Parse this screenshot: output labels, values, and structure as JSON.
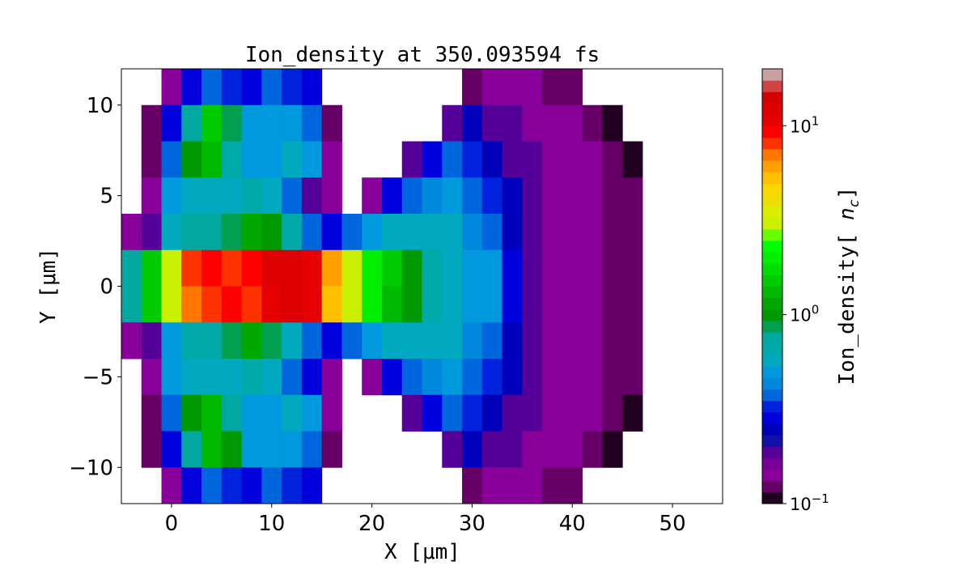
{
  "chart_data": {
    "type": "heatmap",
    "title": "Ion_density at 350.093594 fs",
    "xlabel": "X [μm]",
    "ylabel": "Y [μm]",
    "colorbar_label": "Ion_density[n_c]",
    "colorbar_scale": "log",
    "colorbar_range": [
      0.1,
      20
    ],
    "colorbar_ticks": [
      {
        "value": 10,
        "label": "10",
        "exp": "1"
      },
      {
        "value": 1,
        "label": "10",
        "exp": "0"
      },
      {
        "value": 0.1,
        "label": "10",
        "exp": "−1"
      }
    ],
    "xlim": [
      -5,
      55
    ],
    "ylim": [
      -12,
      12
    ],
    "xticks": [
      {
        "value": 0,
        "label": "0"
      },
      {
        "value": 10,
        "label": "10"
      },
      {
        "value": 20,
        "label": "20"
      },
      {
        "value": 30,
        "label": "30"
      },
      {
        "value": 40,
        "label": "40"
      },
      {
        "value": 50,
        "label": "50"
      }
    ],
    "yticks": [
      {
        "value": 10,
        "label": "10"
      },
      {
        "value": 5,
        "label": "5"
      },
      {
        "value": 0,
        "label": "0"
      },
      {
        "value": -5,
        "label": "−5"
      },
      {
        "value": -10,
        "label": "−10"
      }
    ],
    "grid": false,
    "colormap": [
      "#220022",
      "#660066",
      "#880099",
      "#770099",
      "#550099",
      "#1111aa",
      "#0000bb",
      "#0000dd",
      "#0022dd",
      "#0066dd",
      "#0088dd",
      "#0099dd",
      "#00a8c0",
      "#00aaaa",
      "#00a8a0",
      "#00a050",
      "#009900",
      "#00a800",
      "#00b800",
      "#00cc00",
      "#00dd00",
      "#00f000",
      "#00ff00",
      "#66ff00",
      "#c8f000",
      "#dded00",
      "#eedd00",
      "#f8d800",
      "#ffc000",
      "#ffa000",
      "#ff7700",
      "#ff3300",
      "#ff0000",
      "#e60000",
      "#dd0000",
      "#d40000",
      "#cc4444",
      "#c8a0a0"
    ],
    "x_centers": [
      -4,
      -2,
      0,
      2,
      4,
      6,
      8,
      10,
      12,
      14,
      16,
      18,
      20,
      22,
      24,
      26,
      28,
      30,
      32,
      34,
      36,
      38,
      40,
      42,
      44,
      46,
      48,
      50,
      52,
      54
    ],
    "y_centers": [
      11,
      9,
      7,
      5,
      3,
      1,
      -1,
      -3,
      -5,
      -7,
      -9,
      -11
    ],
    "values": [
      [
        0,
        0,
        0.15,
        0.3,
        0.4,
        0.35,
        0.3,
        0.4,
        0.35,
        0.3,
        0,
        0,
        0,
        0,
        0,
        0,
        0,
        0.12,
        0.15,
        0.15,
        0.15,
        0.12,
        0.12,
        0,
        0,
        0,
        0,
        0,
        0,
        0
      ],
      [
        0,
        0.12,
        0.3,
        0.8,
        1.5,
        0.9,
        0.5,
        0.5,
        0.5,
        0.4,
        0.12,
        0,
        0,
        0,
        0,
        0,
        0.2,
        0.25,
        0.2,
        0.18,
        0.15,
        0.15,
        0.15,
        0.12,
        0.1,
        0,
        0,
        0,
        0,
        0
      ],
      [
        0,
        0.12,
        0.4,
        1.0,
        1.3,
        0.7,
        0.5,
        0.5,
        0.6,
        0.5,
        0.15,
        0,
        0,
        0,
        0.2,
        0.3,
        0.4,
        0.35,
        0.25,
        0.2,
        0.18,
        0.15,
        0.15,
        0.15,
        0.12,
        0.1,
        0,
        0,
        0,
        0
      ],
      [
        0,
        0.15,
        0.5,
        0.6,
        0.6,
        0.6,
        0.7,
        0.6,
        0.4,
        0.2,
        0.15,
        0,
        0.15,
        0.3,
        0.4,
        0.45,
        0.5,
        0.4,
        0.35,
        0.25,
        0.2,
        0.15,
        0.15,
        0.15,
        0.12,
        0.12,
        0,
        0,
        0,
        0
      ],
      [
        0.15,
        0.2,
        0.6,
        0.8,
        0.8,
        0.9,
        1.2,
        1.0,
        0.7,
        0.4,
        0.3,
        0.4,
        0.5,
        0.6,
        0.6,
        0.55,
        0.55,
        0.45,
        0.4,
        0.25,
        0.2,
        0.15,
        0.15,
        0.15,
        0.12,
        0.12,
        0,
        0,
        0,
        0
      ],
      [
        0.8,
        1.5,
        3,
        8,
        9,
        8,
        9,
        12,
        12,
        10,
        6,
        3,
        2,
        1.5,
        1.0,
        0.7,
        0.6,
        0.5,
        0.5,
        0.3,
        0.2,
        0.15,
        0.15,
        0.15,
        0.12,
        0.12,
        0,
        0,
        0,
        0
      ],
      [
        0.8,
        1.5,
        3,
        7,
        8,
        9,
        8,
        11,
        13,
        11,
        5,
        3,
        2,
        1.4,
        1.0,
        0.7,
        0.6,
        0.5,
        0.5,
        0.3,
        0.2,
        0.15,
        0.15,
        0.15,
        0.12,
        0.12,
        0,
        0,
        0,
        0
      ],
      [
        0.15,
        0.2,
        0.5,
        0.7,
        0.7,
        0.9,
        1.1,
        0.9,
        0.6,
        0.4,
        0.3,
        0.4,
        0.5,
        0.6,
        0.6,
        0.55,
        0.55,
        0.45,
        0.4,
        0.25,
        0.2,
        0.15,
        0.15,
        0.15,
        0.12,
        0.12,
        0,
        0,
        0,
        0
      ],
      [
        0,
        0.15,
        0.5,
        0.6,
        0.6,
        0.6,
        0.7,
        0.6,
        0.4,
        0.3,
        0.15,
        0,
        0.15,
        0.3,
        0.4,
        0.45,
        0.5,
        0.4,
        0.35,
        0.25,
        0.2,
        0.15,
        0.15,
        0.15,
        0.12,
        0.12,
        0,
        0,
        0,
        0
      ],
      [
        0,
        0.12,
        0.4,
        1.0,
        1.3,
        0.8,
        0.5,
        0.5,
        0.6,
        0.5,
        0.15,
        0,
        0,
        0,
        0.2,
        0.3,
        0.4,
        0.35,
        0.25,
        0.2,
        0.18,
        0.15,
        0.15,
        0.15,
        0.12,
        0.1,
        0,
        0,
        0,
        0
      ],
      [
        0,
        0.12,
        0.3,
        0.8,
        1.4,
        1.0,
        0.5,
        0.5,
        0.5,
        0.4,
        0.12,
        0,
        0,
        0,
        0,
        0,
        0.2,
        0.25,
        0.2,
        0.18,
        0.15,
        0.15,
        0.15,
        0.12,
        0.1,
        0,
        0,
        0,
        0,
        0
      ],
      [
        0,
        0,
        0.15,
        0.3,
        0.4,
        0.35,
        0.3,
        0.4,
        0.35,
        0.3,
        0,
        0,
        0,
        0,
        0,
        0,
        0,
        0.12,
        0.15,
        0.15,
        0.15,
        0.12,
        0.12,
        0,
        0,
        0,
        0,
        0,
        0,
        0
      ]
    ]
  }
}
